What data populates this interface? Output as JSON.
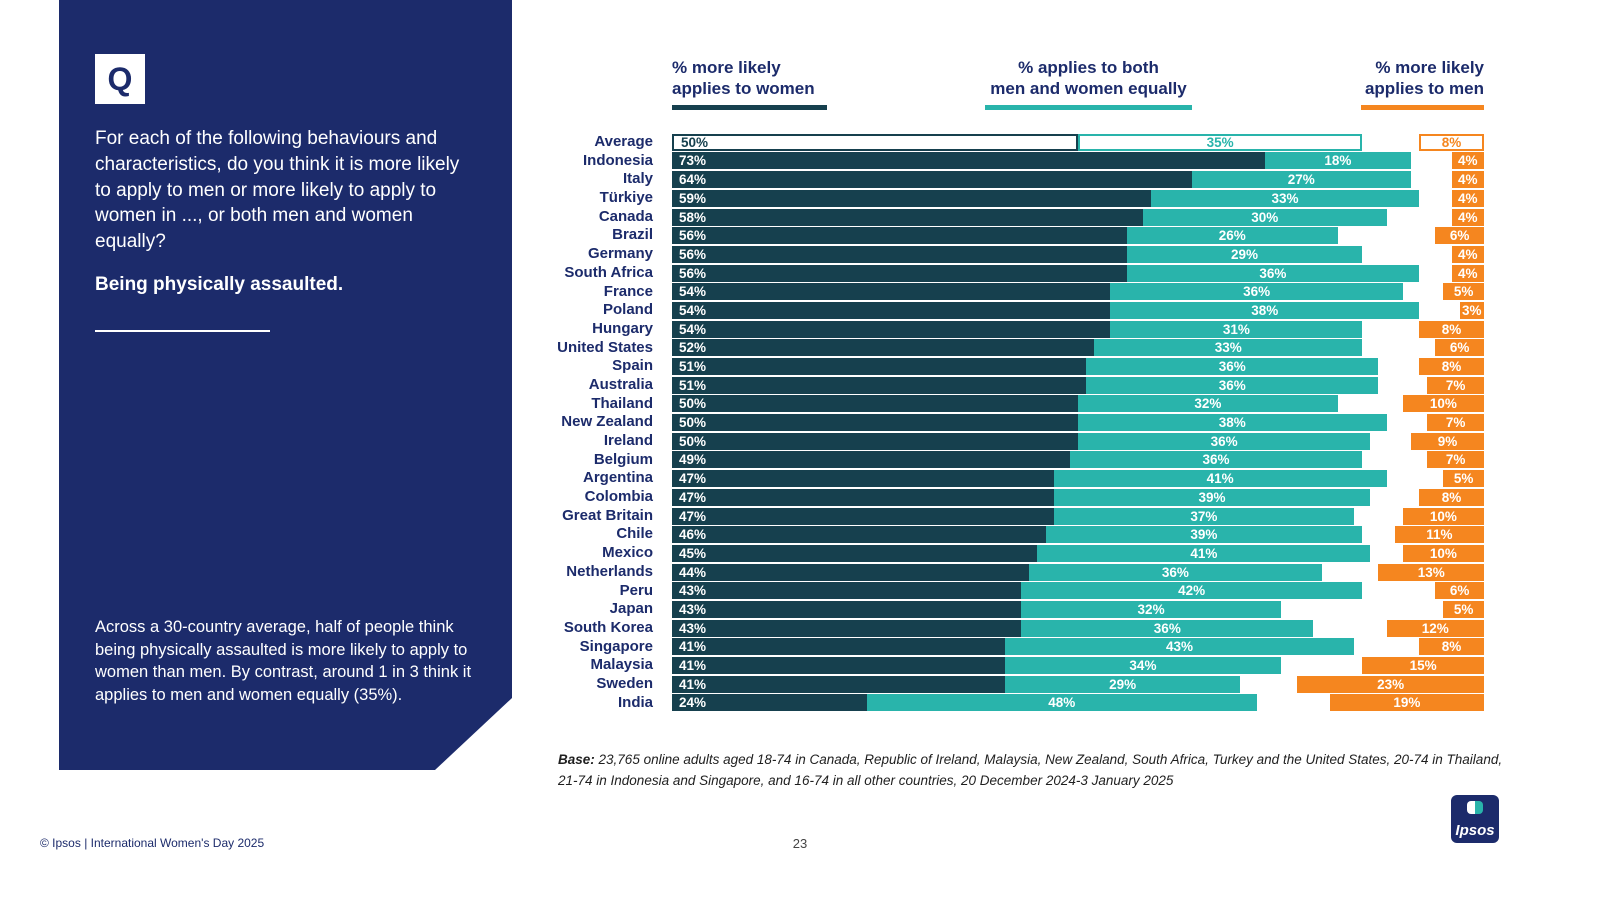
{
  "sidebar": {
    "q_label": "Q",
    "question": "For each of the following behaviours and characteristics, do you think it is more likely to apply to men or more likely to apply to women in ..., or both men and women equally?",
    "topic": "Being physically assaulted.",
    "summary": "Across a 30-country average, half of people think being physically assaulted is more likely to apply to women than men. By contrast, around 1 in 3 think it applies to men and women equally (35%)."
  },
  "chart_data": {
    "type": "bar",
    "orientation": "horizontal",
    "stacked": true,
    "xlim": [
      0,
      100
    ],
    "value_suffix": "%",
    "highlight_row": "Average",
    "legend": [
      {
        "line1": "% more likely",
        "line2": "applies to women",
        "color": "#16404e"
      },
      {
        "line1": "% applies to both",
        "line2": "men and women equally",
        "color": "#29b4ab"
      },
      {
        "line1": "% more likely",
        "line2": "applies to men",
        "color": "#f5861f"
      }
    ],
    "categories": [
      "Average",
      "Indonesia",
      "Italy",
      "Türkiye",
      "Canada",
      "Brazil",
      "Germany",
      "South Africa",
      "France",
      "Poland",
      "Hungary",
      "United States",
      "Spain",
      "Australia",
      "Thailand",
      "New Zealand",
      "Ireland",
      "Belgium",
      "Argentina",
      "Colombia",
      "Great Britain",
      "Chile",
      "Mexico",
      "Netherlands",
      "Peru",
      "Japan",
      "South Korea",
      "Singapore",
      "Malaysia",
      "Sweden",
      "India"
    ],
    "series": [
      {
        "name": "% more likely applies to women",
        "color": "#16404e",
        "values": [
          50,
          73,
          64,
          59,
          58,
          56,
          56,
          56,
          54,
          54,
          54,
          52,
          51,
          51,
          50,
          50,
          50,
          49,
          47,
          47,
          47,
          46,
          45,
          44,
          43,
          43,
          43,
          41,
          41,
          41,
          24
        ]
      },
      {
        "name": "% applies to both men and women equally",
        "color": "#29b4ab",
        "values": [
          35,
          18,
          27,
          33,
          30,
          26,
          29,
          36,
          36,
          38,
          31,
          33,
          36,
          36,
          32,
          38,
          36,
          36,
          41,
          39,
          37,
          39,
          41,
          36,
          42,
          32,
          36,
          43,
          34,
          29,
          48
        ]
      },
      {
        "name": "% more likely applies to men",
        "color": "#f5861f",
        "values": [
          8,
          4,
          4,
          4,
          4,
          6,
          4,
          4,
          5,
          3,
          8,
          6,
          8,
          7,
          10,
          7,
          9,
          7,
          5,
          8,
          10,
          11,
          10,
          13,
          6,
          5,
          12,
          8,
          15,
          23,
          19
        ]
      }
    ]
  },
  "base_note": {
    "label": "Base:",
    "text": " 23,765 online adults aged 18-74 in Canada, Republic of Ireland, Malaysia, New Zealand, South Africa, Turkey and the United States, 20-74 in Thailand, 21-74 in Indonesia and Singapore, and 16-74 in all other countries, 20 December 2024-3 January 2025"
  },
  "footer": {
    "copyright": "© Ipsos | International Women's Day 2025",
    "page_number": "23",
    "logo_text": "Ipsos"
  },
  "colors": {
    "sidebar_navy": "#1c2b6b",
    "women_dark": "#16404e",
    "both_teal": "#29b4ab",
    "men_orange": "#f5861f"
  }
}
